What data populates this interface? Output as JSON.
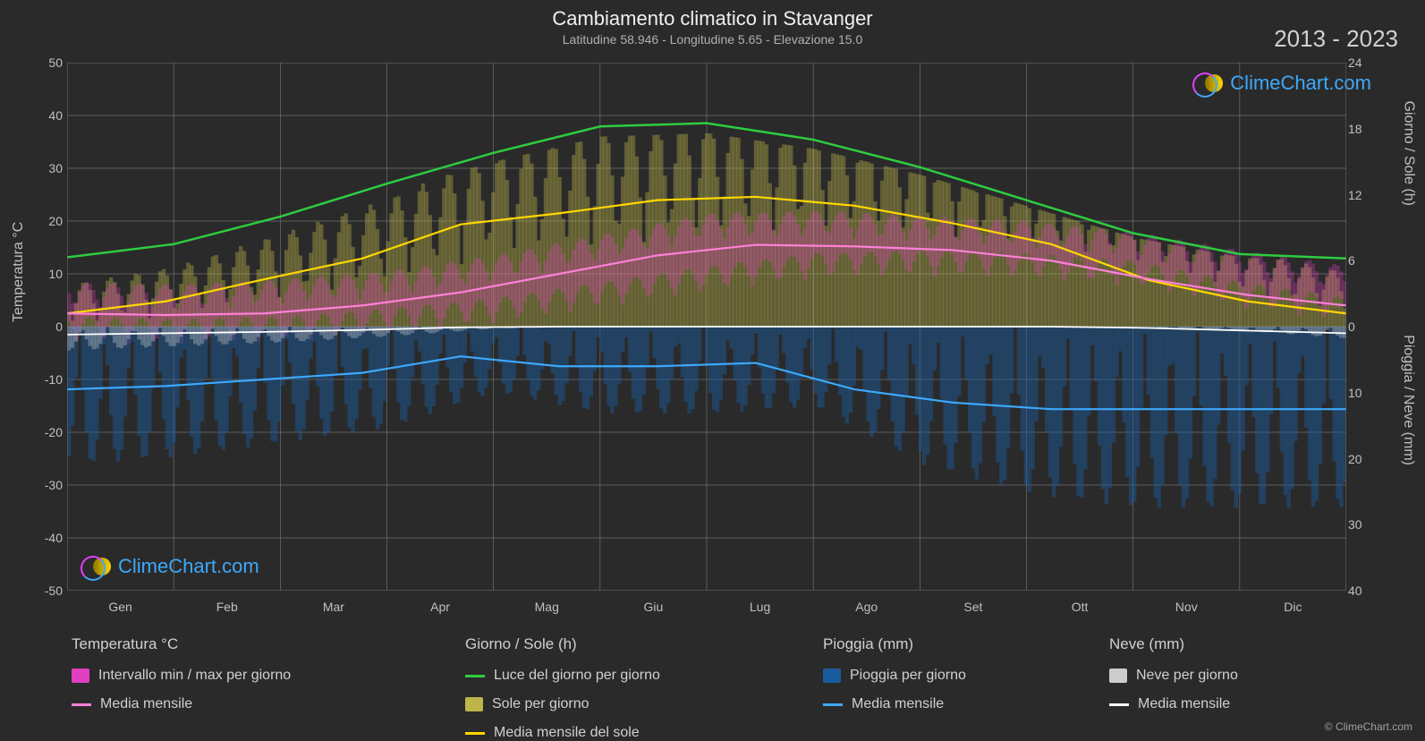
{
  "title": "Cambiamento climatico in Stavanger",
  "subtitle": "Latitudine 58.946 - Longitudine 5.65 - Elevazione 15.0",
  "year_range": "2013 - 2023",
  "copyright": "© ClimeChart.com",
  "watermark_text": "ClimeChart.com",
  "background_color": "#2a2a2a",
  "grid_color": "#707070",
  "text_color": "#d0d0d0",
  "left_axis": {
    "label": "Temperatura °C",
    "min": -50,
    "max": 50,
    "ticks": [
      -50,
      -40,
      -30,
      -20,
      -10,
      0,
      10,
      20,
      30,
      40,
      50
    ]
  },
  "right_axis_top": {
    "label": "Giorno / Sole (h)",
    "min": 0,
    "max": 24,
    "ticks": [
      0,
      6,
      12,
      18,
      24
    ]
  },
  "right_axis_bottom": {
    "label": "Pioggia / Neve (mm)",
    "min": 0,
    "max": 40,
    "ticks": [
      0,
      10,
      20,
      30,
      40
    ]
  },
  "x_axis": {
    "labels": [
      "Gen",
      "Feb",
      "Mar",
      "Apr",
      "Mag",
      "Giu",
      "Lug",
      "Ago",
      "Set",
      "Ott",
      "Nov",
      "Dic"
    ]
  },
  "colors": {
    "temp_range": "#e040c0",
    "temp_mean": "#ff80d8",
    "daylight": "#2ecc40",
    "sun_bars": "#bdb54a",
    "sun_mean": "#ffd700",
    "rain_bars": "#1a5a9e",
    "rain_mean": "#3da9fc",
    "snow_bars": "#cccccc",
    "snow_mean": "#ffffff"
  },
  "daylight_hours": [
    6.3,
    7.5,
    10,
    13,
    15.8,
    18.2,
    18.5,
    17,
    14.5,
    11.5,
    8.5,
    6.6,
    6.2
  ],
  "sun_mean_hours": [
    1.2,
    2.3,
    4.3,
    6.2,
    9.3,
    10.3,
    11.5,
    11.8,
    11,
    9.4,
    7.5,
    4.2,
    2.3,
    1.2
  ],
  "temp_mean_c": [
    2.5,
    2.2,
    2.5,
    4,
    6.5,
    10,
    13.5,
    15.5,
    15.2,
    14.5,
    12.5,
    9,
    6,
    4
  ],
  "temp_max_c": [
    6,
    5.5,
    6.5,
    8,
    11,
    15,
    19,
    19.5,
    18.5,
    17.5,
    15.5,
    12,
    9,
    7
  ],
  "temp_min_c": [
    -0.5,
    -1,
    -0.5,
    1,
    3,
    6,
    9,
    11.5,
    12,
    11.5,
    10,
    6,
    3,
    1
  ],
  "rain_mean_mm": [
    9.5,
    9,
    8,
    7,
    4.5,
    6,
    6,
    5.5,
    9.5,
    11.5,
    12.5,
    12.5,
    12.5,
    12.5
  ],
  "snow_mean_mm": [
    1.2,
    1.0,
    0.8,
    0.5,
    0.1,
    0,
    0,
    0,
    0,
    0,
    0,
    0.2,
    0.6,
    1.0
  ],
  "legend": {
    "temp": {
      "header": "Temperatura °C",
      "items": [
        {
          "swatch": "#e040c0",
          "type": "box",
          "label": "Intervallo min / max per giorno"
        },
        {
          "swatch": "#ff80d8",
          "type": "line",
          "label": "Media mensile"
        }
      ]
    },
    "day": {
      "header": "Giorno / Sole (h)",
      "items": [
        {
          "swatch": "#2ecc40",
          "type": "line",
          "label": "Luce del giorno per giorno"
        },
        {
          "swatch": "#bdb54a",
          "type": "box",
          "label": "Sole per giorno"
        },
        {
          "swatch": "#ffd700",
          "type": "line",
          "label": "Media mensile del sole"
        }
      ]
    },
    "rain": {
      "header": "Pioggia (mm)",
      "items": [
        {
          "swatch": "#1a5a9e",
          "type": "box",
          "label": "Pioggia per giorno"
        },
        {
          "swatch": "#3da9fc",
          "type": "line",
          "label": "Media mensile"
        }
      ]
    },
    "snow": {
      "header": "Neve (mm)",
      "items": [
        {
          "swatch": "#cccccc",
          "type": "box",
          "label": "Neve per giorno"
        },
        {
          "swatch": "#ffffff",
          "type": "line",
          "label": "Media mensile"
        }
      ]
    }
  }
}
